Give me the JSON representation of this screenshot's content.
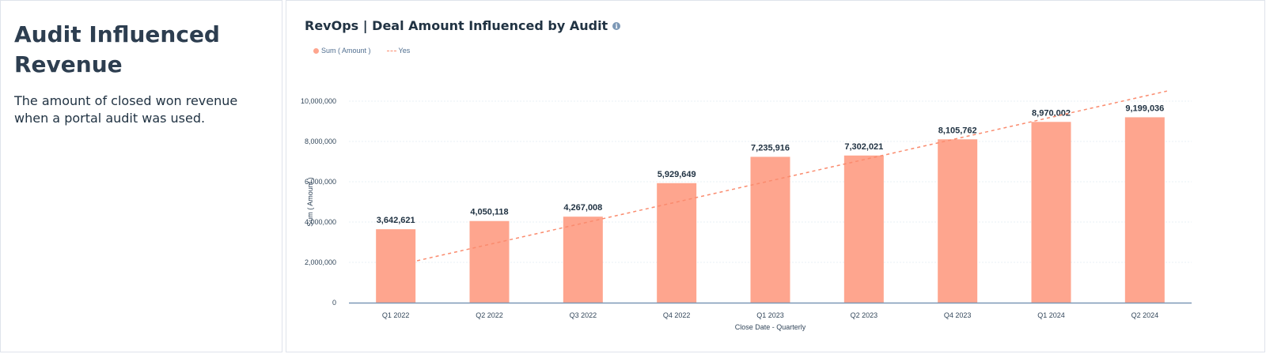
{
  "card": {
    "title": "Audit Influenced Revenue",
    "description": "The amount of closed won revenue when a portal audit was used."
  },
  "report": {
    "title": "RevOps | Deal Amount Influenced by Audit",
    "info_icon": "info-icon"
  },
  "colors": {
    "bar": "#fea58e",
    "trend": "#fa8b6e",
    "text_dark": "#213343",
    "gridline": "#eaf0f6",
    "axis": "#7c98b6"
  },
  "chart_data": {
    "type": "bar",
    "title": "RevOps | Deal Amount Influenced by Audit",
    "xlabel": "Close Date - Quarterly",
    "ylabel": "Sum ( Amount )",
    "ylim": [
      0,
      10000000
    ],
    "yticks": [
      0,
      2000000,
      4000000,
      6000000,
      8000000,
      10000000
    ],
    "ytick_labels": [
      "0",
      "2,000,000",
      "4,000,000",
      "6,000,000",
      "8,000,000",
      "10,000,000"
    ],
    "grid": true,
    "legend": {
      "position": "top-left",
      "entries": [
        {
          "label": "Sum ( Amount )",
          "marker": "dot"
        },
        {
          "label": "Yes",
          "marker": "dashed-line"
        }
      ]
    },
    "categories": [
      "Q1 2022",
      "Q2 2022",
      "Q3 2022",
      "Q4 2022",
      "Q1 2023",
      "Q2 2023",
      "Q4 2023",
      "Q1 2024",
      "Q2 2024"
    ],
    "series": [
      {
        "name": "Sum ( Amount )",
        "type": "bar",
        "values": [
          3642621,
          4050118,
          4267008,
          5929649,
          7235916,
          7302021,
          8105762,
          8970002,
          9199036
        ],
        "labels": [
          "3,642,621",
          "4,050,118",
          "4,267,008",
          "5,929,649",
          "7,235,916",
          "7,302,021",
          "8,105,762",
          "8,970,002",
          "9,199,036"
        ]
      },
      {
        "name": "Yes",
        "type": "trendline",
        "style": "dashed",
        "start": {
          "category": "Q1 2022",
          "value": 2080000
        },
        "end": {
          "category": "Q2 2024",
          "value": 10500000
        }
      }
    ]
  }
}
